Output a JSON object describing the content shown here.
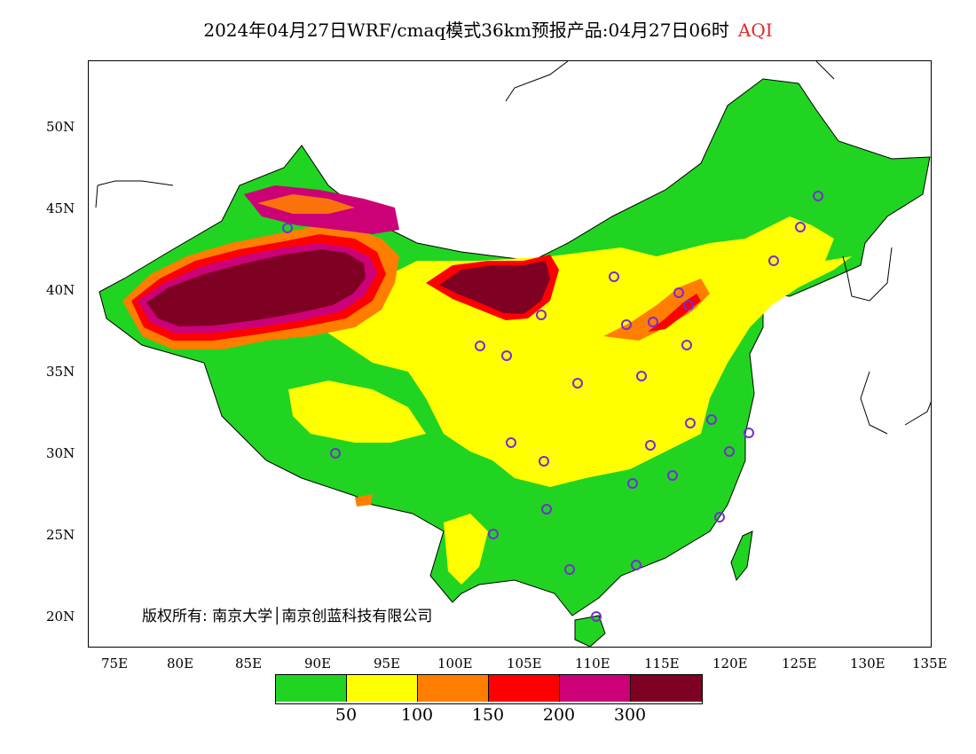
{
  "title": {
    "main": "2024年04月27日WRF/cmaq模式36km预报产品:04月27日06时",
    "variable": "AQI",
    "variable_color": "#e8262a"
  },
  "map": {
    "lat_labels": [
      "50N",
      "45N",
      "40N",
      "35N",
      "30N",
      "25N",
      "20N"
    ],
    "lon_labels": [
      "75E",
      "80E",
      "85E",
      "90E",
      "95E",
      "100E",
      "105E",
      "110E",
      "115E",
      "120E",
      "125E",
      "130E",
      "135E"
    ],
    "colors": {
      "good": "#21d421",
      "moderate": "#ffff00",
      "usg": "#ff7e00",
      "unhealthy": "#ff0000",
      "very_unhealthy": "#cc0077",
      "hazardous": "#7e0023",
      "station_ring": "#7b2bd6"
    }
  },
  "copyright": "版权所有: 南京大学│南京创蓝科技有限公司",
  "legend": {
    "colors": [
      "#21d421",
      "#ffff00",
      "#ff7e00",
      "#ff0000",
      "#cc0077",
      "#7e0023"
    ],
    "labels": [
      "50",
      "100",
      "150",
      "200",
      "300"
    ]
  }
}
